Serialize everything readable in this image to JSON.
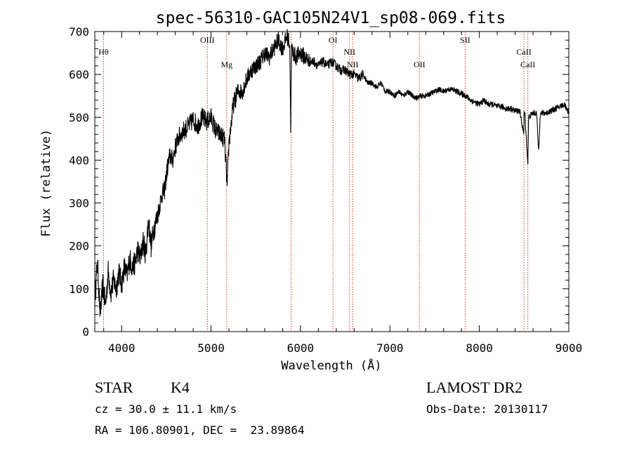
{
  "chart_data": {
    "type": "line",
    "title": "spec-56310-GAC105N24V1_sp08-069.fits",
    "xlabel": "Wavelength (Å)",
    "ylabel": "Flux (relative)",
    "xlim": [
      3700,
      9000
    ],
    "ylim": [
      0,
      700
    ],
    "x_ticks": [
      4000,
      5000,
      6000,
      7000,
      8000,
      9000
    ],
    "y_ticks": [
      0,
      100,
      200,
      300,
      400,
      500,
      600,
      700
    ],
    "grid": false,
    "series": [
      {
        "x": [
          3700,
          3730,
          3760,
          3790,
          3820,
          3850,
          3880,
          3910,
          3940,
          3970,
          4000,
          4030,
          4060,
          4090,
          4120,
          4150,
          4180,
          4210,
          4240,
          4270,
          4300,
          4330,
          4360,
          4390,
          4420,
          4450,
          4480,
          4510,
          4540,
          4570,
          4600,
          4630,
          4660,
          4700,
          4750,
          4800,
          4850,
          4900,
          4950,
          5000,
          5050,
          5100,
          5150,
          5180,
          5200,
          5250,
          5300,
          5350,
          5400,
          5450,
          5500,
          5550,
          5600,
          5650,
          5700,
          5750,
          5800,
          5850,
          5880,
          5890,
          5900,
          5920,
          5950,
          6000,
          6050,
          6100,
          6150,
          6200,
          6250,
          6300,
          6350,
          6400,
          6450,
          6500,
          6550,
          6600,
          6650,
          6700,
          6750,
          6800,
          6850,
          6900,
          6950,
          7000,
          7050,
          7100,
          7150,
          7200,
          7250,
          7300,
          7350,
          7400,
          7450,
          7500,
          7550,
          7600,
          7650,
          7700,
          7750,
          7800,
          7850,
          7900,
          7950,
          8000,
          8050,
          8100,
          8150,
          8200,
          8250,
          8300,
          8350,
          8400,
          8450,
          8498,
          8500,
          8510,
          8542,
          8550,
          8600,
          8640,
          8662,
          8680,
          8700,
          8750,
          8800,
          8850,
          8900,
          8950,
          8980,
          9000
        ],
        "y": [
          80,
          160,
          40,
          110,
          60,
          140,
          90,
          120,
          100,
          140,
          110,
          150,
          130,
          170,
          150,
          160,
          190,
          170,
          210,
          180,
          260,
          200,
          240,
          260,
          290,
          320,
          330,
          380,
          410,
          400,
          430,
          450,
          460,
          470,
          480,
          495,
          480,
          500,
          490,
          500,
          470,
          460,
          450,
          340,
          440,
          530,
          560,
          560,
          590,
          610,
          620,
          630,
          650,
          640,
          660,
          680,
          660,
          690,
          670,
          480,
          660,
          650,
          640,
          650,
          640,
          630,
          630,
          620,
          630,
          620,
          630,
          620,
          610,
          610,
          600,
          600,
          590,
          600,
          580,
          580,
          570,
          580,
          560,
          560,
          550,
          560,
          550,
          560,
          550,
          545,
          550,
          550,
          555,
          560,
          565,
          560,
          565,
          565,
          560,
          555,
          550,
          540,
          535,
          530,
          540,
          530,
          530,
          525,
          525,
          520,
          520,
          515,
          515,
          460,
          510,
          505,
          390,
          500,
          510,
          510,
          420,
          505,
          510,
          510,
          515,
          520,
          525,
          530,
          520,
          510
        ]
      }
    ],
    "lines": [
      {
        "label": "Hθ",
        "x": 3798,
        "label_row": 0
      },
      {
        "label": "OIII",
        "x": 4959,
        "label_row": 1
      },
      {
        "label": "Mg",
        "x": 5175,
        "label_row": 2
      },
      {
        "label": "",
        "x": 5895,
        "label_row": 0
      },
      {
        "label": "OI",
        "x": 6363,
        "label_row": 1
      },
      {
        "label": "NII",
        "x": 6548,
        "label_row": 0
      },
      {
        "label": "NII",
        "x": 6583,
        "label_row": 2
      },
      {
        "label": "OII",
        "x": 7330,
        "label_row": 2
      },
      {
        "label": "SII",
        "x": 7841,
        "label_row": 1
      },
      {
        "label": "CaII",
        "x": 8498,
        "label_row": 0
      },
      {
        "label": "CaII",
        "x": 8542,
        "label_row": 2
      }
    ]
  },
  "info": {
    "object_class": "STAR",
    "subclass": "K4",
    "survey": "LAMOST DR2",
    "cz": "cz = 30.0 ± 11.1 km/s",
    "obs_date": "Obs-Date: 20130117",
    "coords": "RA = 106.80901, DEC =  23.89864"
  }
}
